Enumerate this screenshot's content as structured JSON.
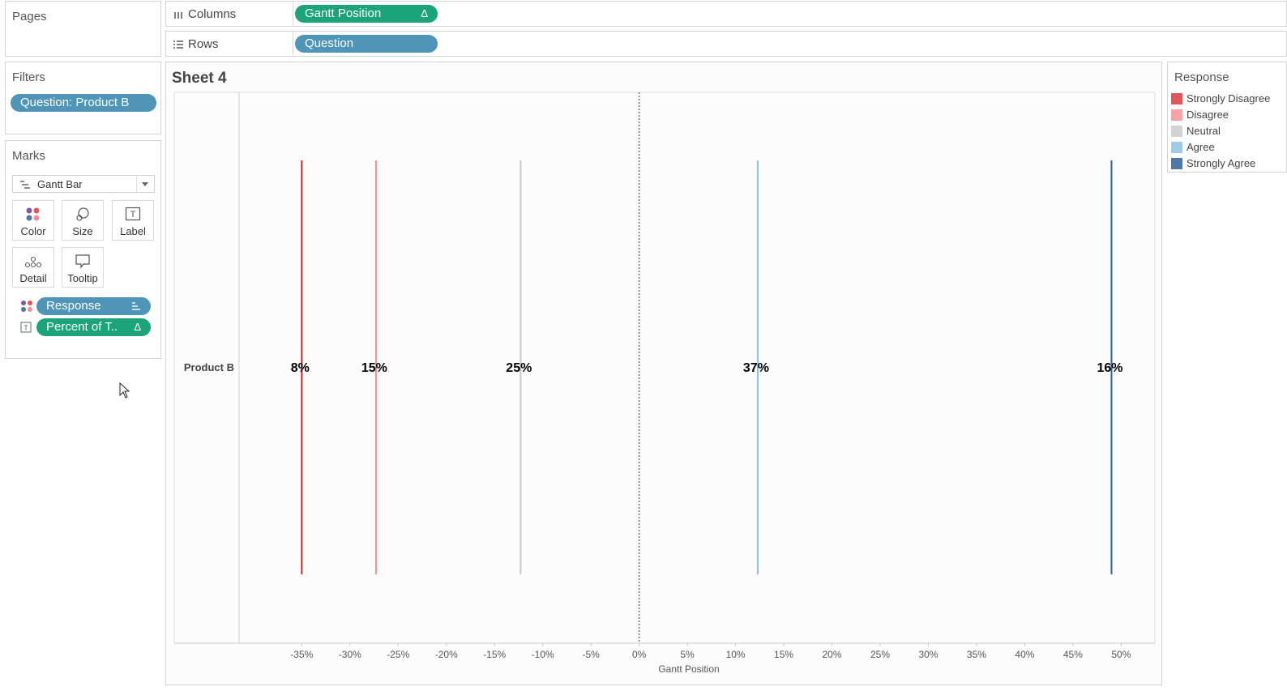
{
  "pages": {
    "title": "Pages"
  },
  "filters": {
    "title": "Filters",
    "pill": "Question: Product B"
  },
  "marks": {
    "title": "Marks",
    "mark_type": "Gantt Bar",
    "buttons": {
      "color": "Color",
      "size": "Size",
      "label": "Label",
      "detail": "Detail",
      "tooltip": "Tooltip"
    },
    "pills": [
      {
        "label": "Response",
        "icon": "sort-icon"
      },
      {
        "label": "Percent of T..",
        "icon": "delta-icon"
      }
    ]
  },
  "shelves": {
    "columns": {
      "label": "Columns",
      "pill": "Gantt Position",
      "pill_icon": "Δ"
    },
    "rows": {
      "label": "Rows",
      "pill": "Question"
    }
  },
  "sheet": {
    "title": "Sheet 4"
  },
  "legend": {
    "title": "Response",
    "items": [
      {
        "label": "Strongly Disagree",
        "color": "#e15759"
      },
      {
        "label": "Disagree",
        "color": "#f7a3a3"
      },
      {
        "label": "Neutral",
        "color": "#d3d3d3"
      },
      {
        "label": "Agree",
        "color": "#a0cbe8"
      },
      {
        "label": "Strongly Agree",
        "color": "#4e79a7"
      }
    ]
  },
  "chart_data": {
    "type": "gantt",
    "row_category": "Product B",
    "xlabel": "Gantt Position",
    "xlim": [
      -0.415,
      0.535
    ],
    "xticks": [
      "-35%",
      "-30%",
      "-25%",
      "-20%",
      "-15%",
      "-10%",
      "-5%",
      "0%",
      "5%",
      "10%",
      "15%",
      "20%",
      "25%",
      "30%",
      "35%",
      "40%",
      "45%",
      "50%"
    ],
    "xtick_values": [
      -0.35,
      -0.3,
      -0.25,
      -0.2,
      -0.15,
      -0.1,
      -0.05,
      0,
      0.05,
      0.1,
      0.15,
      0.2,
      0.25,
      0.3,
      0.35,
      0.4,
      0.45,
      0.5
    ],
    "series": [
      {
        "name": "Strongly Disagree",
        "position": -0.35,
        "label": "8%",
        "color": "#d62728"
      },
      {
        "name": "Disagree",
        "position": -0.273,
        "label": "15%",
        "color": "#f28e8e"
      },
      {
        "name": "Neutral",
        "position": -0.123,
        "label": "25%",
        "color": "#c8c8c8"
      },
      {
        "name": "Agree",
        "position": 0.123,
        "label": "37%",
        "color": "#8fbde3"
      },
      {
        "name": "Strongly Agree",
        "position": 0.49,
        "label": "16%",
        "color": "#2f5fa7"
      }
    ]
  }
}
